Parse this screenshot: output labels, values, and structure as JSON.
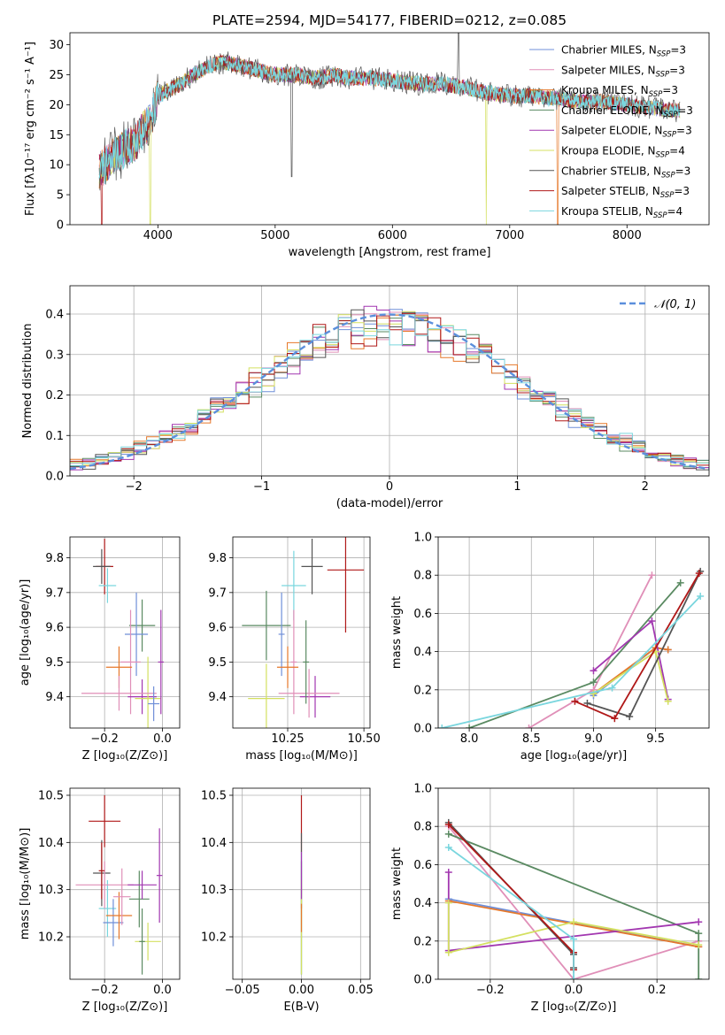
{
  "colors": {
    "chabrier_miles": "#6f8fd8",
    "salpeter_miles": "#e08fb8",
    "kroupa_miles": "#e6782a",
    "chabrier_elodie": "#5a8a62",
    "salpeter_elodie": "#a237b0",
    "kroupa_elodie": "#d4e060",
    "chabrier_stelib": "#555555",
    "salpeter_stelib": "#b01818",
    "kroupa_stelib": "#7ad6de",
    "gauss": "#5b8fdc"
  },
  "chart_data": [
    {
      "id": "spectrum",
      "type": "line",
      "title": "PLATE=2594, MJD=54177, FIBERID=0212, z=0.085",
      "xlabel": "wavelength [Angstrom, rest frame]",
      "ylabel": "Flux [fλ10⁻¹⁷ erg cm⁻² s⁻¹ A⁻¹]",
      "xlim": [
        3250,
        8700
      ],
      "ylim": [
        0,
        32
      ],
      "xticks": [
        4000,
        5000,
        6000,
        7000,
        8000
      ],
      "yticks": [
        0,
        5,
        10,
        15,
        20,
        25,
        30
      ],
      "grid": false,
      "legend_position": "top-right",
      "legend": [
        {
          "label": "Chabrier MILES, N",
          "sub": "SSP",
          "suffix": "=3",
          "color": "chabrier_miles"
        },
        {
          "label": "Salpeter MILES, N",
          "sub": "SSP",
          "suffix": "=3",
          "color": "salpeter_miles"
        },
        {
          "label": "Kroupa MILES, N",
          "sub": "SSP",
          "suffix": "=3",
          "color": "kroupa_miles"
        },
        {
          "label": "Chabrier ELODIE, N",
          "sub": "SSP",
          "suffix": "=3",
          "color": "chabrier_elodie"
        },
        {
          "label": "Salpeter ELODIE, N",
          "sub": "SSP",
          "suffix": "=3",
          "color": "salpeter_elodie"
        },
        {
          "label": "Kroupa ELODIE, N",
          "sub": "SSP",
          "suffix": "=4",
          "color": "kroupa_elodie"
        },
        {
          "label": "Chabrier STELIB, N",
          "sub": "SSP",
          "suffix": "=3",
          "color": "chabrier_stelib"
        },
        {
          "label": "Salpeter STELIB, N",
          "sub": "SSP",
          "suffix": "=3",
          "color": "salpeter_stelib"
        },
        {
          "label": "Kroupa STELIB, N",
          "sub": "SSP",
          "suffix": "=4",
          "color": "kroupa_stelib"
        }
      ],
      "continuum": {
        "x": [
          3500,
          3600,
          3700,
          3800,
          3900,
          3950,
          4000,
          4100,
          4200,
          4300,
          4400,
          4500,
          4600,
          4700,
          4800,
          4900,
          5000,
          5100,
          5200,
          5300,
          5400,
          5500,
          5600,
          5800,
          6000,
          6200,
          6400,
          6600,
          6800,
          7000,
          7200,
          7400,
          7600,
          7800,
          8000,
          8200,
          8400
        ],
        "y": [
          9,
          11,
          12.5,
          13.5,
          16.5,
          18,
          21.5,
          22.5,
          23.5,
          25,
          26,
          27,
          27,
          26.5,
          26,
          25.5,
          25,
          25,
          25,
          24.5,
          24.5,
          25,
          24.5,
          24.5,
          24,
          23.5,
          23.5,
          23,
          22,
          21.5,
          21.5,
          21,
          20.5,
          20.5,
          20,
          19.5,
          19
        ]
      },
      "dips": [
        {
          "x": 3520,
          "to": 0,
          "series": "salpeter_stelib"
        },
        {
          "x": 3933,
          "to": 0,
          "series": "kroupa_elodie"
        },
        {
          "x": 5140,
          "to": 8,
          "series": "chabrier_stelib"
        },
        {
          "x": 6800,
          "to": 0,
          "series": "kroupa_elodie"
        },
        {
          "x": 7410,
          "to": 0,
          "series": "kroupa_miles"
        }
      ],
      "spikes": [
        {
          "x": 6563,
          "to": 32,
          "series": "chabrier_stelib"
        }
      ]
    },
    {
      "id": "residuals",
      "type": "histogram",
      "xlabel": "(data-model)/error",
      "ylabel": "Normed distribution",
      "xlim": [
        -2.5,
        2.5
      ],
      "ylim": [
        0,
        0.47
      ],
      "xticks": [
        -2,
        -1,
        0,
        1,
        2
      ],
      "yticks": [
        0.0,
        0.1,
        0.2,
        0.3,
        0.4
      ],
      "grid": true,
      "bin_width": 0.1,
      "legend": [
        {
          "label": "𝒩(0, 1)",
          "style": "dashed",
          "color": "gauss"
        }
      ],
      "legend_position": "top-right",
      "gaussian": {
        "mean": 0,
        "sigma": 1
      }
    },
    {
      "id": "age_vs_Z",
      "type": "errorbar",
      "xlabel": "Z [log₁₀(Z/Z⊙)]",
      "ylabel": "age  [log₁₀(age/yr)]",
      "xlim": [
        -0.32,
        0.06
      ],
      "ylim": [
        9.31,
        9.86
      ],
      "xticks": [
        -0.2,
        0.0
      ],
      "yticks": [
        9.4,
        9.5,
        9.6,
        9.7,
        9.8
      ],
      "grid": true,
      "points": [
        {
          "series": "salpeter_stelib",
          "x": -0.2,
          "xerr": 0.03,
          "y": 9.775,
          "yerr": 0.08
        },
        {
          "series": "chabrier_stelib",
          "x": -0.21,
          "xerr": 0.03,
          "y": 9.775,
          "yerr": 0.05
        },
        {
          "series": "kroupa_stelib",
          "x": -0.19,
          "xerr": 0.03,
          "y": 9.72,
          "yerr": 0.05
        },
        {
          "series": "chabrier_elodie",
          "x": -0.07,
          "xerr": 0.045,
          "y": 9.605,
          "yerr": 0.075
        },
        {
          "series": "chabrier_miles",
          "x": -0.09,
          "xerr": 0.04,
          "y": 9.58,
          "yerr": 0.12
        },
        {
          "series": "salpeter_miles",
          "x": -0.11,
          "xerr": 0.035,
          "y": 9.5,
          "yerr": 0.15
        },
        {
          "series": "kroupa_miles",
          "x": -0.15,
          "xerr": 0.045,
          "y": 9.485,
          "yerr": 0.06
        },
        {
          "series": "salpeter_elodie",
          "x": -0.07,
          "xerr": 0.05,
          "y": 9.4,
          "yerr": 0.05
        },
        {
          "series": "kroupa_elodie",
          "x": -0.05,
          "xerr": 0.045,
          "y": 9.395,
          "yerr": 0.12
        },
        {
          "series": "salpeter_miles",
          "x": -0.15,
          "xerr": 0.13,
          "y": 9.41,
          "yerr": 0.05
        },
        {
          "series": "chabrier_miles",
          "x": -0.03,
          "xerr": 0.02,
          "y": 9.38,
          "yerr": 0.05
        },
        {
          "series": "salpeter_elodie",
          "x": -0.005,
          "xerr": 0.01,
          "y": 9.5,
          "yerr": 0.15
        }
      ]
    },
    {
      "id": "age_vs_mass",
      "type": "errorbar",
      "xlabel": "mass [log₁₀(M/M⊙)]",
      "ylabel": "",
      "xlim": [
        10.07,
        10.52
      ],
      "ylim": [
        9.31,
        9.86
      ],
      "xticks": [
        10.25,
        10.5
      ],
      "yticks": [
        9.4,
        9.5,
        9.6,
        9.7,
        9.8
      ],
      "grid": true,
      "points": [
        {
          "series": "salpeter_stelib",
          "x": 10.44,
          "xerr": 0.06,
          "y": 9.765,
          "yerr": 0.18
        },
        {
          "series": "chabrier_stelib",
          "x": 10.33,
          "xerr": 0.035,
          "y": 9.775,
          "yerr": 0.08
        },
        {
          "series": "kroupa_stelib",
          "x": 10.27,
          "xerr": 0.04,
          "y": 9.72,
          "yerr": 0.1
        },
        {
          "series": "chabrier_elodie",
          "x": 10.18,
          "xerr": 0.08,
          "y": 9.605,
          "yerr": 0.1
        },
        {
          "series": "chabrier_miles",
          "x": 10.23,
          "xerr": 0.01,
          "y": 9.58,
          "yerr": 0.12
        },
        {
          "series": "salpeter_miles",
          "x": 10.27,
          "xerr": 0.01,
          "y": 9.5,
          "yerr": 0.15
        },
        {
          "series": "kroupa_miles",
          "x": 10.25,
          "xerr": 0.035,
          "y": 9.485,
          "yerr": 0.06
        },
        {
          "series": "salpeter_elodie",
          "x": 10.34,
          "xerr": 0.05,
          "y": 9.4,
          "yerr": 0.06
        },
        {
          "series": "kroupa_elodie",
          "x": 10.18,
          "xerr": 0.06,
          "y": 9.395,
          "yerr": 0.1
        },
        {
          "series": "salpeter_miles",
          "x": 10.32,
          "xerr": 0.1,
          "y": 9.41,
          "yerr": 0.07
        },
        {
          "series": "chabrier_elodie",
          "x": 10.31,
          "xerr": 0.01,
          "y": 9.5,
          "yerr": 0.12
        }
      ]
    },
    {
      "id": "weight_vs_age",
      "type": "line",
      "xlabel": "age  [log₁₀(age/yr)]",
      "ylabel": "mass weight",
      "xlim": [
        7.75,
        9.93
      ],
      "ylim": [
        0,
        1.0
      ],
      "xticks": [
        8.0,
        8.5,
        9.0,
        9.5
      ],
      "yticks": [
        0.0,
        0.2,
        0.4,
        0.6,
        0.8,
        1.0
      ],
      "grid": true,
      "series": [
        {
          "key": "chabrier_miles",
          "x": [
            9.0,
            9.5,
            9.6
          ],
          "y": [
            0.17,
            0.42,
            0.41
          ]
        },
        {
          "key": "salpeter_miles",
          "x": [
            8.48,
            9.0,
            9.47
          ],
          "y": [
            0.0,
            0.2,
            0.8
          ]
        },
        {
          "key": "kroupa_miles",
          "x": [
            9.0,
            9.5,
            9.6
          ],
          "y": [
            0.18,
            0.42,
            0.41
          ]
        },
        {
          "key": "chabrier_elodie",
          "x": [
            8.0,
            9.0,
            9.7
          ],
          "y": [
            0.0,
            0.24,
            0.76
          ]
        },
        {
          "key": "salpeter_elodie",
          "x": [
            9.0,
            9.47,
            9.6
          ],
          "y": [
            0.3,
            0.56,
            0.15
          ]
        },
        {
          "key": "kroupa_elodie",
          "x": [
            9.0,
            9.5,
            9.6
          ],
          "y": [
            0.18,
            0.4,
            0.14
          ]
        },
        {
          "key": "chabrier_stelib",
          "x": [
            8.95,
            9.29,
            9.86
          ],
          "y": [
            0.13,
            0.06,
            0.82
          ]
        },
        {
          "key": "salpeter_stelib",
          "x": [
            8.85,
            9.17,
            9.85
          ],
          "y": [
            0.14,
            0.05,
            0.81
          ]
        },
        {
          "key": "kroupa_stelib",
          "x": [
            7.78,
            9.15,
            9.86
          ],
          "y": [
            0.0,
            0.21,
            0.69
          ]
        }
      ]
    },
    {
      "id": "mass_vs_Z",
      "type": "errorbar",
      "xlabel": "Z [log₁₀(Z/Z⊙)]",
      "ylabel": "mass [log₁₀(M/M⊙)]",
      "xlim": [
        -0.32,
        0.06
      ],
      "ylim": [
        10.11,
        10.515
      ],
      "xticks": [
        -0.2,
        0.0
      ],
      "yticks": [
        10.2,
        10.3,
        10.4,
        10.5
      ],
      "grid": true,
      "points": [
        {
          "series": "salpeter_stelib",
          "x": -0.2,
          "xerr": 0.055,
          "y": 10.445,
          "yerr": 0.055
        },
        {
          "series": "chabrier_stelib",
          "x": -0.21,
          "xerr": 0.03,
          "y": 10.335,
          "yerr": 0.07
        },
        {
          "series": "kroupa_stelib",
          "x": -0.19,
          "xerr": 0.03,
          "y": 10.26,
          "yerr": 0.06
        },
        {
          "series": "chabrier_elodie",
          "x": -0.08,
          "xerr": 0.035,
          "y": 10.28,
          "yerr": 0.06
        },
        {
          "series": "chabrier_miles",
          "x": -0.17,
          "xerr": 0.035,
          "y": 10.23,
          "yerr": 0.05
        },
        {
          "series": "salpeter_miles",
          "x": -0.2,
          "xerr": 0.1,
          "y": 10.31,
          "yerr": 0.05
        },
        {
          "series": "kroupa_miles",
          "x": -0.15,
          "xerr": 0.045,
          "y": 10.245,
          "yerr": 0.05
        },
        {
          "series": "salpeter_elodie",
          "x": -0.07,
          "xerr": 0.05,
          "y": 10.31,
          "yerr": 0.03
        },
        {
          "series": "kroupa_elodie",
          "x": -0.05,
          "xerr": 0.045,
          "y": 10.19,
          "yerr": 0.04
        },
        {
          "series": "salpeter_miles",
          "x": -0.14,
          "xerr": 0.03,
          "y": 10.285,
          "yerr": 0.06
        },
        {
          "series": "chabrier_elodie",
          "x": -0.07,
          "xerr": 0.01,
          "y": 10.19,
          "yerr": 0.07
        },
        {
          "series": "salpeter_elodie",
          "x": -0.01,
          "xerr": 0.01,
          "y": 10.33,
          "yerr": 0.1
        },
        {
          "series": "salpeter_stelib",
          "x": -0.21,
          "xerr": 0.01,
          "y": 10.34,
          "yerr": 0.06
        }
      ]
    },
    {
      "id": "mass_vs_ebv",
      "type": "errorbar",
      "xlabel": "E(B-V)",
      "ylabel": "",
      "xlim": [
        -0.058,
        0.058
      ],
      "ylim": [
        10.11,
        10.515
      ],
      "xticks": [
        -0.05,
        0.0,
        0.05
      ],
      "yticks": [
        10.2,
        10.3,
        10.4,
        10.5
      ],
      "grid": true,
      "points": [
        {
          "series": "salpeter_stelib",
          "x": 0,
          "xerr": 0,
          "y": 10.44,
          "yerr": 0.06
        },
        {
          "series": "chabrier_stelib",
          "x": 0,
          "xerr": 0,
          "y": 10.34,
          "yerr": 0.08
        },
        {
          "series": "kroupa_stelib",
          "x": 0,
          "xerr": 0,
          "y": 10.25,
          "yerr": 0.13
        },
        {
          "series": "chabrier_elodie",
          "x": 0,
          "xerr": 0,
          "y": 10.24,
          "yerr": 0.12
        },
        {
          "series": "kroupa_elodie",
          "x": 0,
          "xerr": 0,
          "y": 10.22,
          "yerr": 0.1
        },
        {
          "series": "salpeter_elodie",
          "x": 0,
          "xerr": 0,
          "y": 10.33,
          "yerr": 0.05
        },
        {
          "series": "kroupa_miles",
          "x": 0,
          "xerr": 0,
          "y": 10.24,
          "yerr": 0.03
        }
      ]
    },
    {
      "id": "weight_vs_Z",
      "type": "line",
      "xlabel": "Z [log₁₀(Z/Z⊙)]",
      "ylabel": "mass weight",
      "xlim": [
        -0.325,
        0.325
      ],
      "ylim": [
        0,
        1.0
      ],
      "xticks": [
        -0.2,
        0.0,
        0.2
      ],
      "yticks": [
        0.0,
        0.2,
        0.4,
        0.6,
        0.8,
        1.0
      ],
      "grid": true,
      "series": [
        {
          "key": "chabrier_miles",
          "x": [
            -0.3,
            0.3
          ],
          "y": [
            0.42,
            0.17
          ]
        },
        {
          "key": "salpeter_miles",
          "x": [
            -0.3,
            0.0,
            0.3
          ],
          "y": [
            0.8,
            0.0,
            0.2
          ]
        },
        {
          "key": "kroupa_miles",
          "x": [
            -0.3,
            0.3
          ],
          "y": [
            0.41,
            0.17
          ]
        },
        {
          "key": "chabrier_elodie",
          "x": [
            -0.3,
            0.3,
            0.3
          ],
          "y": [
            0.76,
            0.24,
            0.0
          ]
        },
        {
          "key": "salpeter_elodie",
          "x": [
            -0.3,
            -0.3,
            0.3
          ],
          "y": [
            0.56,
            0.15,
            0.3
          ]
        },
        {
          "key": "kroupa_elodie",
          "x": [
            -0.3,
            -0.3,
            0.0,
            0.3
          ],
          "y": [
            0.4,
            0.14,
            0.3,
            0.18
          ]
        },
        {
          "key": "chabrier_stelib",
          "x": [
            -0.3,
            0.0,
            0.0
          ],
          "y": [
            0.82,
            0.13,
            0.06
          ]
        },
        {
          "key": "salpeter_stelib",
          "x": [
            -0.3,
            0.0,
            0.0
          ],
          "y": [
            0.81,
            0.14,
            0.05
          ]
        },
        {
          "key": "kroupa_stelib",
          "x": [
            -0.3,
            0.0,
            0.0
          ],
          "y": [
            0.69,
            0.21,
            0.0
          ]
        }
      ]
    }
  ]
}
